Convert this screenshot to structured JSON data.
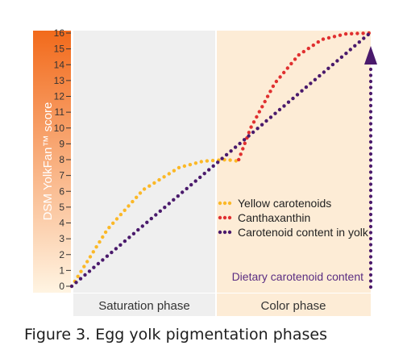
{
  "caption": "Figure 3. Egg yolk pigmentation phases",
  "colors": {
    "axis_band_top": "#f26a1b",
    "axis_band_bottom": "#fff4e2",
    "saturation_bg": "#efefef",
    "color_phase_bg": "#fdecd6",
    "yellow_series": "#fbb827",
    "red_series": "#e03030",
    "purple_series": "#4a1a6c",
    "dietary_text": "#5a2d82",
    "axis_text": "#333333"
  },
  "chart_data": {
    "type": "line",
    "ylabel": "DSM YolkFan™ score",
    "xlabel": "",
    "y_ticks": [
      "0",
      "1",
      "2",
      "3",
      "4",
      "5",
      "6",
      "7",
      "8",
      "9",
      "10",
      "11",
      "12",
      "13",
      "14",
      "15",
      "16"
    ],
    "ylim": [
      0,
      16
    ],
    "phases": [
      "Saturation phase",
      "Color phase"
    ],
    "series": [
      {
        "name": "Yellow carotenoids",
        "color": "#fbb827",
        "style": "dotted",
        "points": [
          [
            0,
            0
          ],
          [
            0.15,
            3.6
          ],
          [
            0.3,
            6.1
          ],
          [
            0.45,
            7.5
          ],
          [
            0.55,
            7.9
          ],
          [
            0.65,
            8.0
          ],
          [
            0.7,
            7.9
          ]
        ]
      },
      {
        "name": "Canthaxanthin",
        "color": "#e03030",
        "style": "dotted",
        "points": [
          [
            0.7,
            8.0
          ],
          [
            0.75,
            10.0
          ],
          [
            0.85,
            12.8
          ],
          [
            0.95,
            14.6
          ],
          [
            1.05,
            15.6
          ],
          [
            1.15,
            15.95
          ],
          [
            1.25,
            16.0
          ]
        ]
      },
      {
        "name": "Carotenoid content in yolk",
        "color": "#4a1a6c",
        "style": "dotted",
        "points": [
          [
            0,
            0
          ],
          [
            1.25,
            16.0
          ]
        ]
      }
    ],
    "annotations": [
      {
        "text": "Dietary carotenoid content",
        "kind": "vertical-arrow"
      }
    ],
    "legend_position": "right"
  }
}
